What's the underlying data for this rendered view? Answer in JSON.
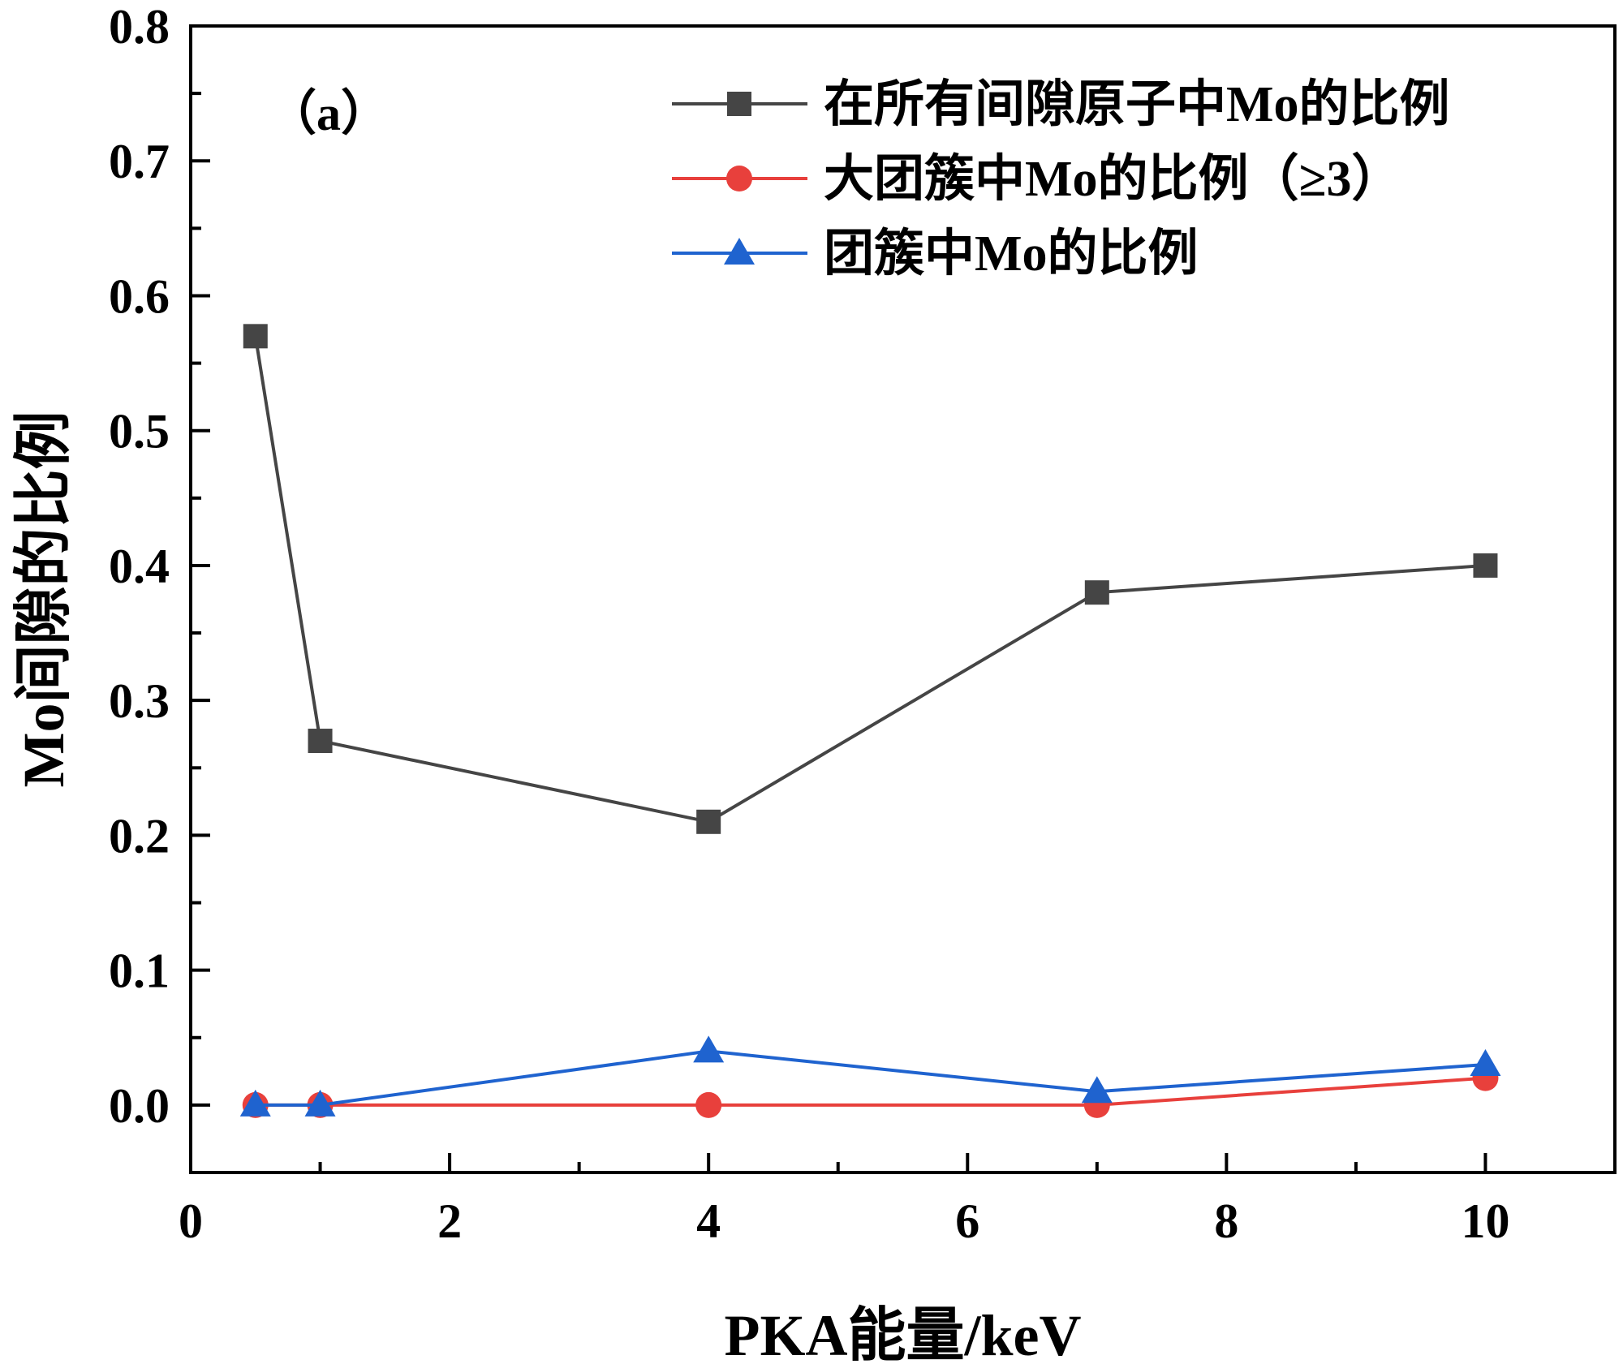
{
  "chart_data": {
    "type": "line",
    "panel_label": "（a）",
    "xlabel": "PKA能量/keV",
    "ylabel": "Mo间隙的比例",
    "xlim": [
      0,
      11
    ],
    "ylim": [
      -0.05,
      0.8
    ],
    "xticks": [
      0,
      2,
      4,
      6,
      8,
      10
    ],
    "xtick_labels": [
      "0",
      "2",
      "4",
      "6",
      "8",
      "10"
    ],
    "yticks": [
      0.0,
      0.1,
      0.2,
      0.3,
      0.4,
      0.5,
      0.6,
      0.7,
      0.8
    ],
    "ytick_labels": [
      "0.0",
      "0.1",
      "0.2",
      "0.3",
      "0.4",
      "0.5",
      "0.6",
      "0.7",
      "0.8"
    ],
    "legend_position": "top-right",
    "x": [
      0.5,
      1,
      4,
      7,
      10
    ],
    "series": [
      {
        "name": "在所有间隙原子中Mo的比例",
        "color": "#454545",
        "marker": "square",
        "values": [
          0.57,
          0.27,
          0.21,
          0.38,
          0.4
        ]
      },
      {
        "name": "大团簇中Mo的比例（≥3）",
        "color": "#e8403c",
        "marker": "circle",
        "values": [
          0.0,
          0.0,
          0.0,
          0.0,
          0.02
        ]
      },
      {
        "name": "团簇中Mo的比例",
        "color": "#1f63cf",
        "marker": "triangle",
        "values": [
          0.0,
          0.0,
          0.04,
          0.01,
          0.03
        ]
      }
    ]
  }
}
